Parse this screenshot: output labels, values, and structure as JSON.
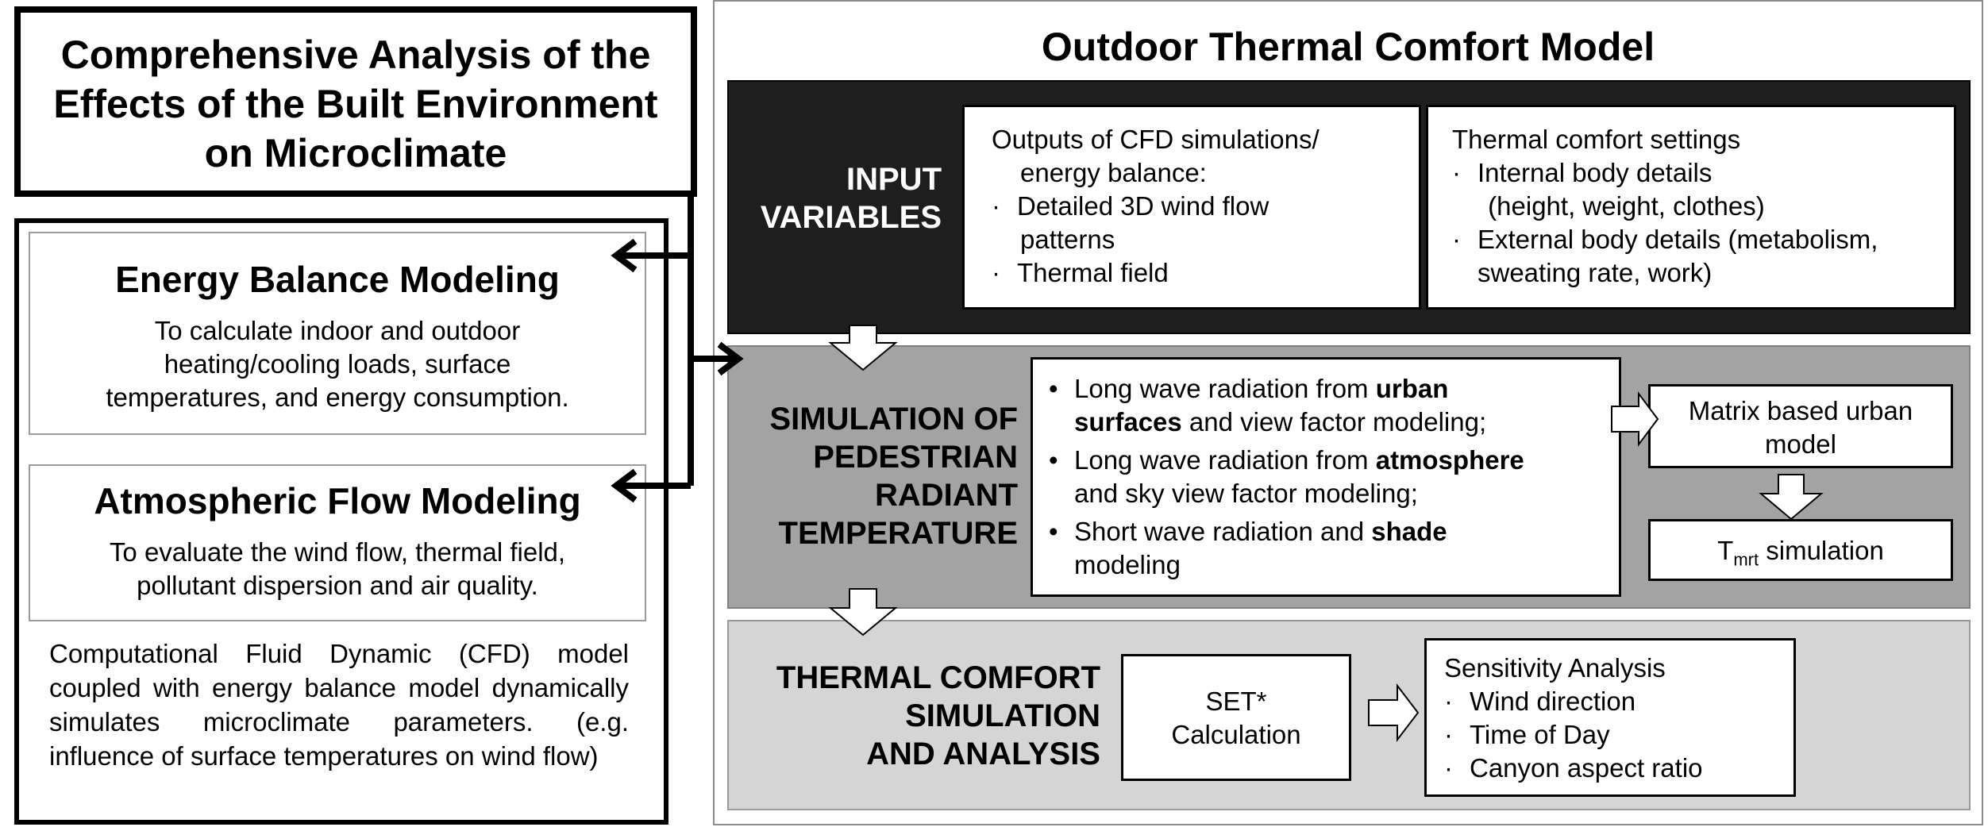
{
  "left": {
    "title_lines": [
      "Comprehensive Analysis of the",
      "Effects of the Built Environment",
      "on Microclimate"
    ],
    "energy": {
      "title": "Energy Balance Modeling",
      "desc_lines": [
        "To calculate indoor and outdoor",
        "heating/cooling loads, surface",
        "temperatures, and  energy consumption."
      ]
    },
    "atmos": {
      "title": "Atmospheric Flow Modeling",
      "desc_lines": [
        "To evaluate the wind flow, thermal field,",
        "pollutant dispersion and air quality."
      ]
    },
    "cfd_text": "Computational Fluid Dynamic (CFD) model coupled with energy balance model dynamically simulates microclimate parameters. (e.g. influence of surface temperatures on wind flow)"
  },
  "right": {
    "title": "Outdoor Thermal Comfort Model",
    "input": {
      "label_lines": [
        "INPUT",
        "VARIABLES"
      ],
      "cfd_box": {
        "head_lines": [
          "Outputs of CFD simulations/",
          "energy balance:"
        ],
        "bullets": [
          [
            "Detailed 3D wind flow",
            "patterns"
          ],
          [
            "Thermal field"
          ]
        ]
      },
      "comfort_box": {
        "head": "Thermal comfort settings",
        "bullets": [
          [
            "Internal body details",
            " (height, weight, clothes)"
          ],
          [
            "External body details (metabolism,",
            "sweating rate, work)"
          ]
        ]
      }
    },
    "sim": {
      "label_lines": [
        "SIMULATION OF",
        "PEDESTRIAN",
        "RADIANT",
        "TEMPERATURE"
      ],
      "b1": {
        "a": "Long wave radiation from ",
        "bold": "urban",
        "bold2": "surfaces",
        "c": " and view factor modeling;"
      },
      "b2": {
        "a": "Long wave radiation from ",
        "bold": "atmosphere",
        "c": "and sky view factor modeling;"
      },
      "b3": {
        "a": "Short wave radiation and ",
        "bold": "shade",
        "c": "modeling"
      },
      "matrix_lines": [
        "Matrix based urban",
        "model"
      ],
      "tmrt": {
        "t": "T",
        "sub": "mrt",
        "rest": " simulation"
      }
    },
    "tc": {
      "label_lines": [
        "THERMAL COMFORT",
        "SIMULATION",
        "AND ANALYSIS"
      ],
      "set_lines": [
        "SET*",
        "Calculation"
      ],
      "sens_head": "Sensitivity Analysis",
      "sens_items": [
        "Wind direction",
        "Time of Day",
        "Canyon aspect ratio"
      ]
    }
  }
}
